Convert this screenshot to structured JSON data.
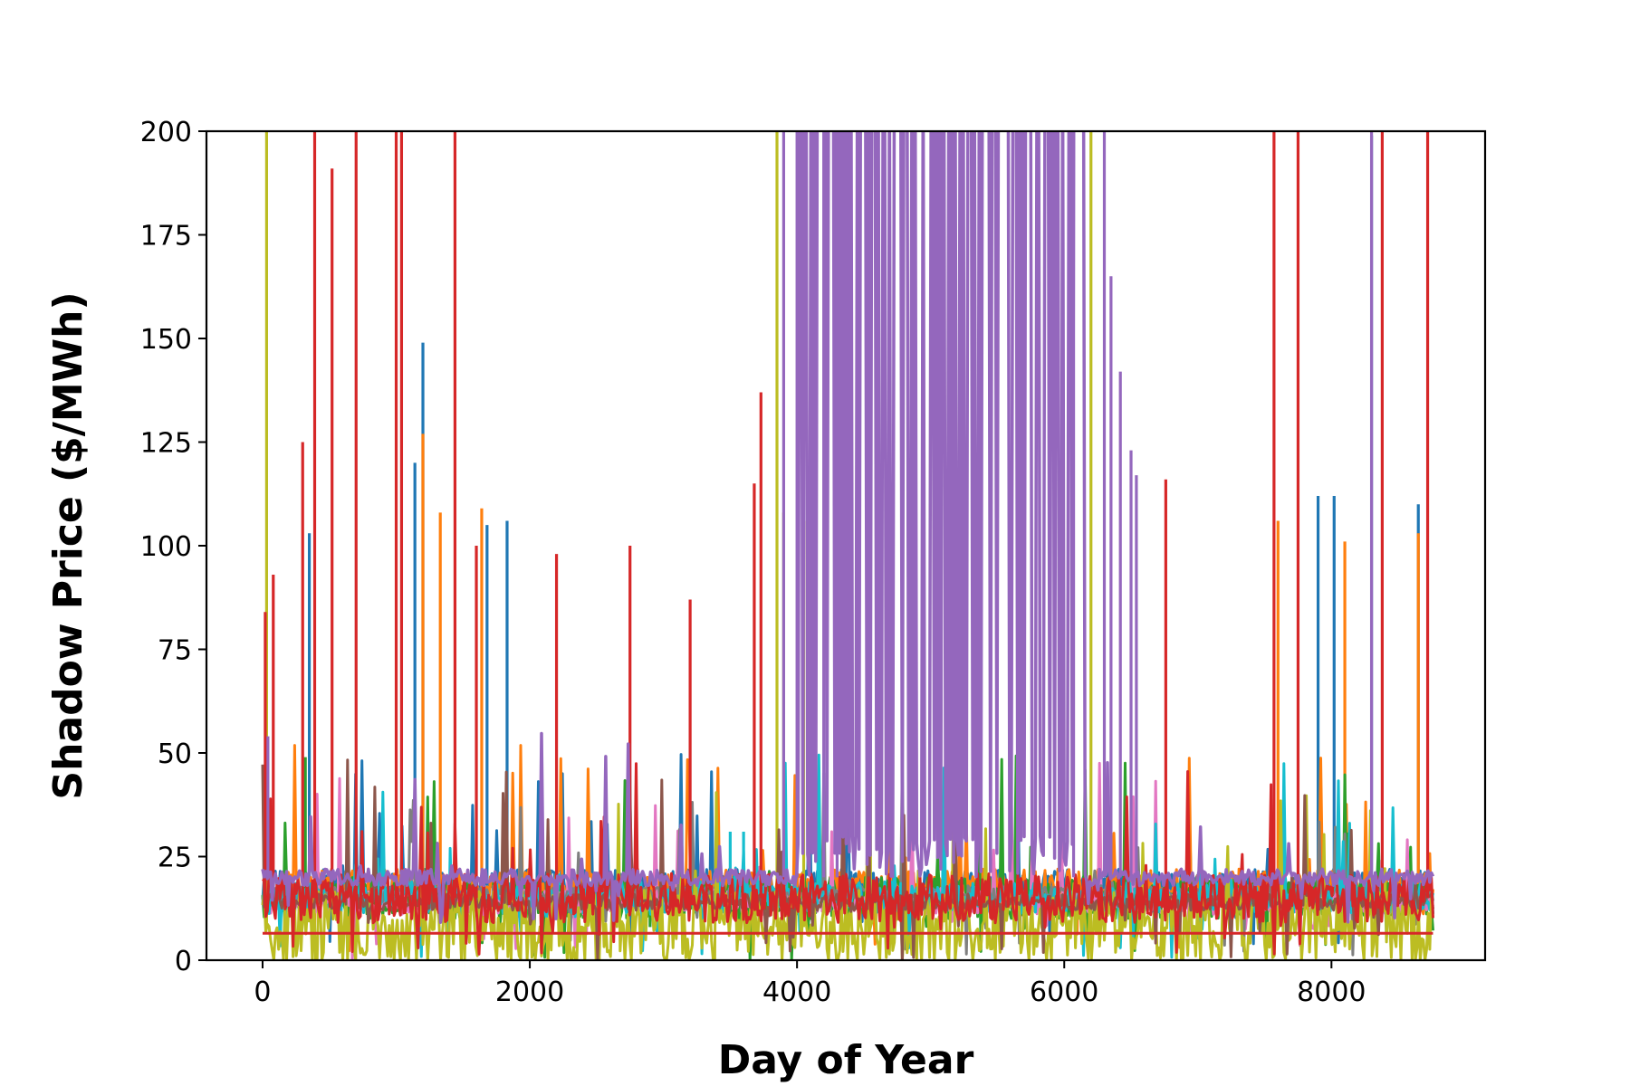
{
  "chart_data": {
    "type": "line",
    "title": "",
    "xlabel": "Day of Year",
    "ylabel": "Shadow Price ($/MWh)",
    "xlim": [
      -420,
      9150
    ],
    "ylim": [
      0,
      200
    ],
    "xticks": [
      0,
      2000,
      4000,
      6000,
      8000
    ],
    "yticks": [
      0,
      25,
      50,
      75,
      100,
      125,
      150,
      175,
      200
    ],
    "x_extent": [
      0,
      8760
    ],
    "grid": false,
    "legend": "none",
    "series_colors": [
      "#1f77b4",
      "#ff7f0e",
      "#2ca02c",
      "#e377c2",
      "#7f7f7f",
      "#17becf",
      "#bcbd22",
      "#8c564b",
      "#d62728",
      "#9467bd"
    ],
    "series": [
      {
        "name": "blue",
        "color": "#1f77b4",
        "baseline": 18,
        "noise": 4,
        "spikes": [
          [
            350,
            103
          ],
          [
            1140,
            120
          ],
          [
            1200,
            149
          ],
          [
            1680,
            105
          ],
          [
            1830,
            106
          ],
          [
            7900,
            112
          ],
          [
            8020,
            112
          ],
          [
            8650,
            110
          ],
          [
            8300,
            199
          ]
        ]
      },
      {
        "name": "orange",
        "color": "#ff7f0e",
        "baseline": 17,
        "noise": 5,
        "spikes": [
          [
            1200,
            127
          ],
          [
            1330,
            108
          ],
          [
            1640,
            109
          ],
          [
            7600,
            106
          ],
          [
            8100,
            101
          ],
          [
            8650,
            103
          ]
        ]
      },
      {
        "name": "green",
        "color": "#2ca02c",
        "baseline": 15,
        "noise": 5,
        "spikes": [
          [
            320,
            49
          ],
          [
            2400,
            10
          ],
          [
            2900,
            8
          ]
        ]
      },
      {
        "name": "pink",
        "color": "#e377c2",
        "baseline": 14,
        "noise": 3,
        "spikes": [
          [
            4100,
            12
          ],
          [
            6150,
            14
          ]
        ]
      },
      {
        "name": "gray",
        "color": "#7f7f7f",
        "baseline": 16,
        "noise": 2,
        "spikes": []
      },
      {
        "name": "cyan",
        "color": "#17becf",
        "baseline": 15,
        "noise": 4,
        "spikes": [
          [
            3400,
            31
          ],
          [
            3500,
            31
          ],
          [
            3600,
            31
          ]
        ]
      },
      {
        "name": "olive",
        "color": "#bcbd22",
        "baseline": 8,
        "noise": 9,
        "spikes": [
          [
            30,
            200
          ],
          [
            3850,
            200
          ],
          [
            4550,
            154
          ],
          [
            6200,
            200
          ],
          [
            3900,
            108
          ],
          [
            4050,
            106
          ]
        ]
      },
      {
        "name": "brown",
        "color": "#8c564b",
        "baseline": 14,
        "noise": 2,
        "spikes": []
      },
      {
        "name": "red",
        "color": "#d62728",
        "baseline": 15,
        "noise": 6,
        "flat_line": 6.5,
        "spikes": [
          [
            20,
            84
          ],
          [
            80,
            93
          ],
          [
            390,
            200
          ],
          [
            520,
            191
          ],
          [
            700,
            200
          ],
          [
            1000,
            200
          ],
          [
            1040,
            200
          ],
          [
            1440,
            200
          ],
          [
            3680,
            115
          ],
          [
            3730,
            137
          ],
          [
            6760,
            116
          ],
          [
            7570,
            200
          ],
          [
            7750,
            200
          ],
          [
            8380,
            200
          ],
          [
            8720,
            200
          ],
          [
            300,
            125
          ],
          [
            1600,
            100
          ],
          [
            2200,
            98
          ],
          [
            2750,
            100
          ],
          [
            3200,
            87
          ]
        ]
      },
      {
        "name": "purple",
        "color": "#9467bd",
        "baseline": 20,
        "noise": 2,
        "dense_band": [
          4000,
          6150
        ],
        "spikes": [
          [
            3900,
            200
          ],
          [
            4000,
            200
          ],
          [
            4200,
            200
          ],
          [
            4300,
            200
          ],
          [
            6070,
            200
          ],
          [
            6300,
            200
          ],
          [
            6350,
            165
          ],
          [
            6420,
            142
          ],
          [
            6500,
            123
          ],
          [
            6540,
            117
          ],
          [
            8300,
            200
          ],
          [
            40,
            54
          ]
        ]
      }
    ]
  }
}
